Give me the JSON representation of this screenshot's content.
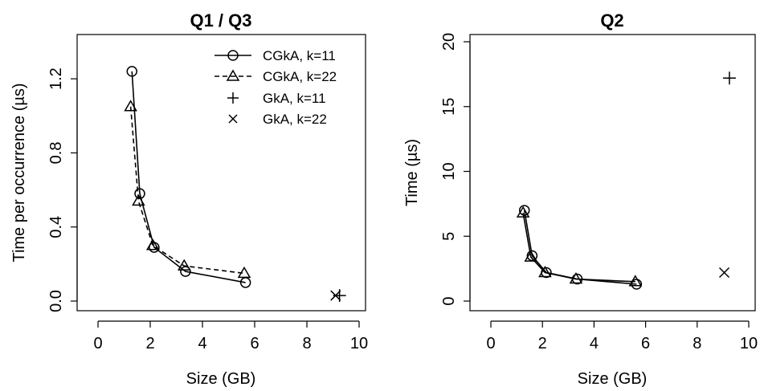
{
  "chart_data": [
    {
      "type": "line",
      "title": "Q1 / Q3",
      "xlabel": "Size (GB)",
      "ylabel": "Time per occurrence (µs)",
      "xlim": [
        0,
        10
      ],
      "ylim": [
        0,
        1.4
      ],
      "xticks": [
        0,
        2,
        4,
        6,
        8,
        10
      ],
      "yticks": [
        0.0,
        0.4,
        0.8,
        1.2
      ],
      "ytick_labels": [
        "0.0",
        "0.4",
        "0.8",
        "1.2"
      ],
      "grid": false,
      "legend": {
        "placement": "top-right",
        "entries": [
          {
            "label": "CGkA, k=11",
            "marker": "circle",
            "line": "solid"
          },
          {
            "label": "CGkA, k=22",
            "marker": "triangle",
            "line": "dashed"
          },
          {
            "label": "GkA, k=11",
            "marker": "plus",
            "line": "none"
          },
          {
            "label": "GkA, k=22",
            "marker": "cross",
            "line": "none"
          }
        ]
      },
      "series": [
        {
          "name": "CGkA, k=11",
          "marker": "circle",
          "line": "solid",
          "x": [
            1.3,
            1.6,
            2.15,
            3.35,
            5.65
          ],
          "y": [
            1.24,
            0.58,
            0.29,
            0.16,
            0.1
          ]
        },
        {
          "name": "CGkA, k=22",
          "marker": "triangle",
          "line": "dashed",
          "x": [
            1.25,
            1.55,
            2.1,
            3.3,
            5.6
          ],
          "y": [
            1.05,
            0.54,
            0.3,
            0.19,
            0.15
          ]
        },
        {
          "name": "GkA, k=11",
          "marker": "plus",
          "line": "none",
          "x": [
            9.25
          ],
          "y": [
            0.03
          ]
        },
        {
          "name": "GkA, k=22",
          "marker": "cross",
          "line": "none",
          "x": [
            9.1
          ],
          "y": [
            0.03
          ]
        }
      ]
    },
    {
      "type": "line",
      "title": "Q2",
      "xlabel": "Size (GB)",
      "ylabel": "Time (µs)",
      "xlim": [
        0,
        10
      ],
      "ylim": [
        0,
        20
      ],
      "xticks": [
        0,
        2,
        4,
        6,
        8,
        10
      ],
      "yticks": [
        0,
        5,
        10,
        15,
        20
      ],
      "ytick_labels": [
        "0",
        "5",
        "10",
        "15",
        "20"
      ],
      "grid": false,
      "series": [
        {
          "name": "CGkA, k=11",
          "marker": "circle",
          "line": "solid",
          "x": [
            1.3,
            1.6,
            2.15,
            3.35,
            5.65
          ],
          "y": [
            7.0,
            3.5,
            2.2,
            1.7,
            1.3
          ]
        },
        {
          "name": "CGkA, k=22",
          "marker": "triangle",
          "line": "solid",
          "x": [
            1.25,
            1.55,
            2.1,
            3.3,
            5.6
          ],
          "y": [
            6.8,
            3.4,
            2.2,
            1.7,
            1.5
          ]
        },
        {
          "name": "GkA, k=11",
          "marker": "plus",
          "line": "none",
          "x": [
            9.25
          ],
          "y": [
            17.2
          ]
        },
        {
          "name": "GkA, k=22",
          "marker": "cross",
          "line": "none",
          "x": [
            9.05
          ],
          "y": [
            2.2
          ]
        }
      ]
    }
  ]
}
